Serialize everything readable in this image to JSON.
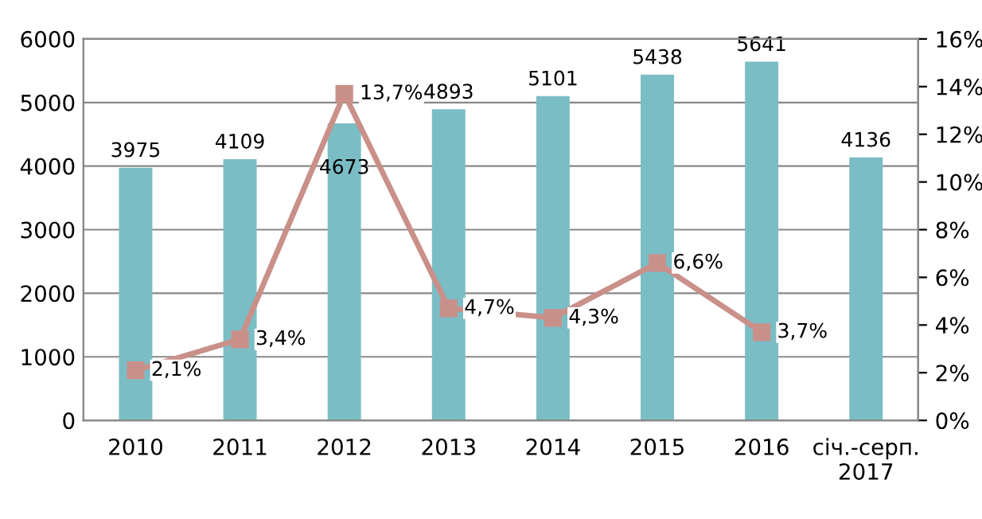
{
  "chart_data": {
    "type": "bar",
    "categories": [
      "2010",
      "2011",
      "2012",
      "2013",
      "2014",
      "2015",
      "2016",
      "січ.-серп.\n2017"
    ],
    "series": [
      {
        "color": "#7bbdc5",
        "values": [
          3975,
          4109,
          4673,
          4893,
          5101,
          5438,
          5641,
          4136
        ],
        "data_labels": true
      },
      {
        "type": "line",
        "axis": "y2",
        "color": "#c9908a",
        "marker": "square",
        "values": [
          2.1,
          3.4,
          13.7,
          4.7,
          4.3,
          6.6,
          3.7,
          null
        ],
        "value_labels": [
          "2,1%",
          "3,4%",
          "13,7%",
          "4,7%",
          "4,3%",
          "6,6%",
          "3,7%",
          null
        ]
      }
    ],
    "ylim": [
      0,
      6000
    ],
    "yticks": [
      0,
      1000,
      2000,
      3000,
      4000,
      5000,
      6000
    ],
    "y2lim": [
      0,
      16
    ],
    "y2ticks": [
      {
        "value": 0,
        "label": "0%"
      },
      {
        "value": 2,
        "label": "2%"
      },
      {
        "value": 4,
        "label": "4%"
      },
      {
        "value": 6,
        "label": "6%"
      },
      {
        "value": 8,
        "label": "8%"
      },
      {
        "value": 10,
        "label": "10%"
      },
      {
        "value": 12,
        "label": "12%"
      },
      {
        "value": 14,
        "label": "14%"
      },
      {
        "value": 16,
        "label": "16%"
      }
    ],
    "grid": "y",
    "legend": false
  }
}
